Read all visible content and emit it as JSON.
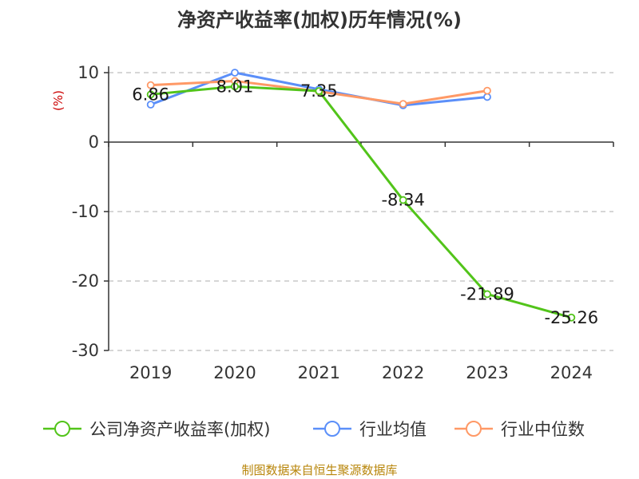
{
  "chart_data": {
    "type": "line",
    "title": "净资产收益率(加权)历年情况(%)",
    "ylabel": "(%)",
    "xlabel": "",
    "categories": [
      "2019",
      "2020",
      "2021",
      "2022",
      "2023",
      "2024"
    ],
    "ylim": [
      -30,
      10
    ],
    "yticks": [
      10,
      0,
      -10,
      -20,
      -30
    ],
    "grid": true,
    "legend_position": "bottom",
    "series": [
      {
        "name": "公司净资产收益率(加权)",
        "color": "#52c41a",
        "values": [
          6.86,
          8.01,
          7.35,
          -8.34,
          -21.89,
          -25.26
        ],
        "labels": [
          "6.86",
          "8.01",
          "7.35",
          "-8.34",
          "-21.89",
          "-25.26"
        ]
      },
      {
        "name": "行业均值",
        "color": "#5b8ff9",
        "values": [
          5.4,
          10.0,
          7.6,
          5.3,
          6.5,
          null
        ]
      },
      {
        "name": "行业中位数",
        "color": "#ff9966",
        "values": [
          8.2,
          8.8,
          7.3,
          5.5,
          7.4,
          null
        ]
      }
    ]
  },
  "source_text": "制图数据来自恒生聚源数据库"
}
